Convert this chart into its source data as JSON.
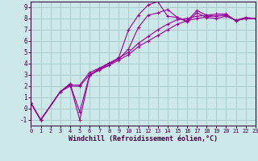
{
  "xlabel": "Windchill (Refroidissement éolien,°C)",
  "bg_color": "#cce8e8",
  "grid_color": "#aacccc",
  "line_color": "#990099",
  "xlim": [
    0,
    23
  ],
  "ylim": [
    -1.5,
    9.5
  ],
  "xticks": [
    0,
    1,
    2,
    3,
    4,
    5,
    6,
    7,
    8,
    9,
    10,
    11,
    12,
    13,
    14,
    15,
    16,
    17,
    18,
    19,
    20,
    21,
    22,
    23
  ],
  "yticks": [
    -1,
    0,
    1,
    2,
    3,
    4,
    5,
    6,
    7,
    8,
    9
  ],
  "series": [
    {
      "x": [
        0,
        1,
        3,
        4,
        5,
        6,
        7,
        8,
        9,
        10,
        11,
        12,
        13,
        14,
        15,
        16,
        17,
        18,
        19,
        20,
        21,
        22,
        23
      ],
      "y": [
        0.5,
        -1.0,
        1.5,
        2.2,
        -0.3,
        3.0,
        3.55,
        3.85,
        4.55,
        7.0,
        8.3,
        9.2,
        9.5,
        8.2,
        8.1,
        7.8,
        8.7,
        8.3,
        8.2,
        8.3,
        7.85,
        8.1,
        8.0
      ]
    },
    {
      "x": [
        0,
        1,
        3,
        4,
        5,
        6,
        7,
        8,
        9,
        10,
        11,
        12,
        13,
        14,
        15,
        16,
        17,
        18,
        19,
        20,
        21,
        22,
        23
      ],
      "y": [
        0.5,
        -1.0,
        1.5,
        2.2,
        -1.0,
        2.9,
        3.5,
        4.0,
        4.4,
        5.3,
        7.2,
        8.3,
        8.5,
        8.8,
        8.1,
        7.7,
        8.5,
        8.1,
        8.0,
        8.2,
        7.85,
        8.0,
        8.0
      ]
    },
    {
      "x": [
        0,
        1,
        3,
        4,
        5,
        6,
        7,
        8,
        9,
        10,
        11,
        12,
        13,
        14,
        15,
        16,
        17,
        18,
        19,
        20,
        21,
        22,
        23
      ],
      "y": [
        0.5,
        -1.0,
        1.5,
        2.1,
        2.1,
        3.2,
        3.6,
        4.05,
        4.5,
        5.0,
        5.8,
        6.4,
        7.0,
        7.5,
        7.9,
        8.0,
        8.2,
        8.3,
        8.4,
        8.4,
        7.8,
        8.0,
        8.0
      ]
    },
    {
      "x": [
        0,
        1,
        3,
        4,
        5,
        6,
        7,
        8,
        9,
        10,
        11,
        12,
        13,
        14,
        15,
        16,
        17,
        18,
        19,
        20,
        21,
        22,
        23
      ],
      "y": [
        0.5,
        -1.0,
        1.5,
        2.0,
        2.0,
        3.0,
        3.4,
        3.85,
        4.3,
        4.8,
        5.5,
        6.0,
        6.5,
        7.0,
        7.5,
        7.8,
        8.0,
        8.15,
        8.25,
        8.3,
        7.8,
        8.0,
        8.0
      ]
    }
  ]
}
